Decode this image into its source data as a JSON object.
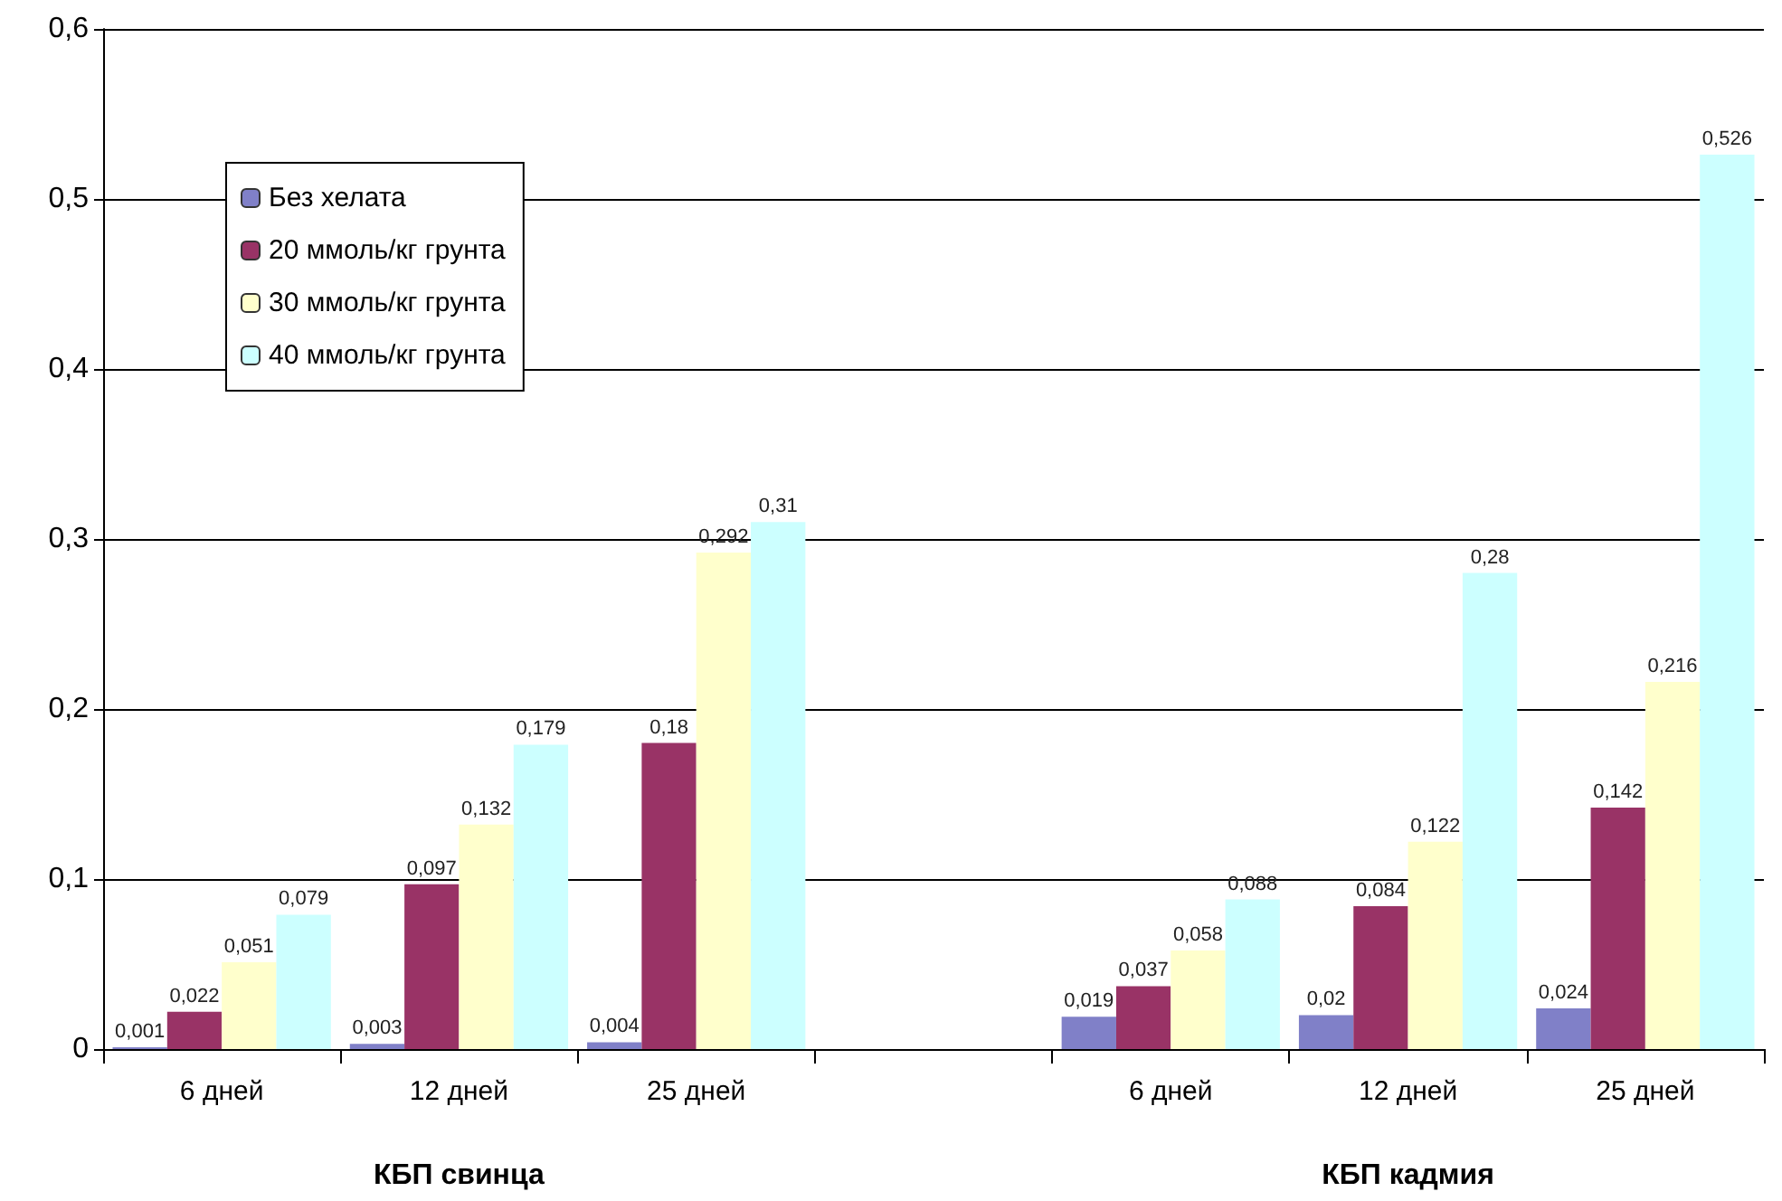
{
  "chart_data": {
    "type": "bar",
    "categories": [
      "6 дней",
      "12 дней",
      "25 дней",
      null,
      "6 дней",
      "12 дней",
      "25 дней"
    ],
    "series": [
      {
        "name": "Без хелата",
        "color": "#8080c8",
        "values": [
          0.001,
          0.003,
          0.004,
          null,
          0.019,
          0.02,
          0.024
        ],
        "value_labels": [
          "0,001",
          "0,003",
          "0,004",
          null,
          "0,019",
          "0,02",
          "0,024"
        ]
      },
      {
        "name": "20 ммоль/кг грунта",
        "color": "#993366",
        "values": [
          0.022,
          0.097,
          0.18,
          null,
          0.037,
          0.084,
          0.142
        ],
        "value_labels": [
          "0,022",
          "0,097",
          "0,18",
          null,
          "0,037",
          "0,084",
          "0,142"
        ]
      },
      {
        "name": "30 ммоль/кг грунта",
        "color": "#ffffcc",
        "values": [
          0.051,
          0.132,
          0.292,
          null,
          0.058,
          0.122,
          0.216
        ],
        "value_labels": [
          "0,051",
          "0,132",
          "0,292",
          null,
          "0,058",
          "0,122",
          "0,216"
        ]
      },
      {
        "name": "40 ммоль/кг грунта",
        "color": "#ccffff",
        "values": [
          0.079,
          0.179,
          0.31,
          null,
          0.088,
          0.28,
          0.526
        ],
        "value_labels": [
          "0,079",
          "0,179",
          "0,31",
          null,
          "0,088",
          "0,28",
          "0,526"
        ]
      }
    ],
    "ylim": [
      0,
      0.6
    ],
    "yticks": [
      0,
      {
        "value": 0.1,
        "label": "0,1"
      },
      {
        "value": 0.2,
        "label": "0,2"
      },
      {
        "value": 0.3,
        "label": "0,3"
      },
      {
        "value": 0.4,
        "label": "0,4"
      },
      {
        "value": 0.5,
        "label": "0,5"
      },
      {
        "value": 0.6,
        "label": "0,6"
      }
    ],
    "grid": "y",
    "legend": "top left",
    "annotations": [
      "КБП свинца",
      "КБП кадмия"
    ]
  }
}
